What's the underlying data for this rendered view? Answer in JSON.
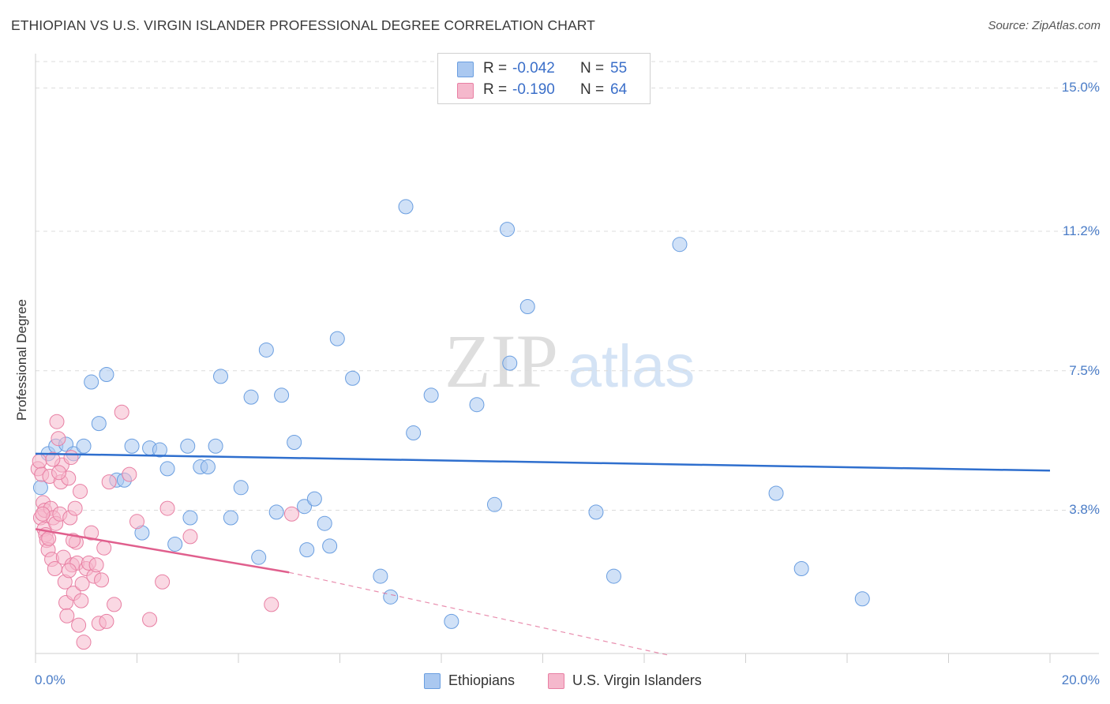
{
  "header": {
    "title": "ETHIOPIAN VS U.S. VIRGIN ISLANDER PROFESSIONAL DEGREE CORRELATION CHART",
    "source": "Source: ZipAtlas.com"
  },
  "watermark": {
    "zip": "ZIP",
    "atlas": "atlas"
  },
  "stats": [
    {
      "r_label": "R =",
      "r_value": "-0.042",
      "n_label": "N =",
      "n_value": "55",
      "color": "#aac8f0"
    },
    {
      "r_label": "R =",
      "r_value": "-0.190",
      "n_label": "N =",
      "n_value": "64",
      "color": "#f5b8cc"
    }
  ],
  "legend": [
    {
      "label": "Ethiopians",
      "color": "#aac8f0"
    },
    {
      "label": "U.S. Virgin Islanders",
      "color": "#f5b8cc"
    }
  ],
  "chart_data": {
    "type": "scatter",
    "title": "ETHIOPIAN VS U.S. VIRGIN ISLANDER PROFESSIONAL DEGREE CORRELATION CHART",
    "xlabel": "",
    "ylabel": "Professional Degree",
    "xlim": [
      0,
      20
    ],
    "ylim": [
      0,
      15.7
    ],
    "x_tick_labels": [
      "0.0%",
      "20.0%"
    ],
    "y_ticks": [
      3.8,
      7.5,
      11.2,
      15.0
    ],
    "y_tick_labels": [
      "3.8%",
      "7.5%",
      "11.2%",
      "15.0%"
    ],
    "grid": true,
    "series": [
      {
        "name": "Ethiopians",
        "color": "#6a9ee0",
        "fill": "#aac8f0",
        "trend": {
          "x": [
            0.0,
            20.0
          ],
          "y": [
            5.3,
            4.85
          ],
          "color": "#2f6fce"
        },
        "points": [
          [
            0.1,
            4.4
          ],
          [
            0.25,
            5.3
          ],
          [
            0.4,
            5.5
          ],
          [
            0.6,
            5.55
          ],
          [
            0.75,
            5.3
          ],
          [
            0.95,
            5.5
          ],
          [
            1.1,
            7.2
          ],
          [
            1.25,
            6.1
          ],
          [
            1.4,
            7.4
          ],
          [
            1.6,
            4.6
          ],
          [
            1.75,
            4.6
          ],
          [
            1.9,
            5.5
          ],
          [
            2.1,
            3.2
          ],
          [
            2.25,
            5.45
          ],
          [
            2.45,
            5.4
          ],
          [
            2.6,
            4.9
          ],
          [
            2.75,
            2.9
          ],
          [
            3.0,
            5.5
          ],
          [
            3.05,
            3.6
          ],
          [
            3.25,
            4.95
          ],
          [
            3.4,
            4.95
          ],
          [
            3.55,
            5.5
          ],
          [
            3.65,
            7.35
          ],
          [
            3.85,
            3.6
          ],
          [
            4.05,
            4.4
          ],
          [
            4.25,
            6.8
          ],
          [
            4.4,
            2.55
          ],
          [
            4.55,
            8.05
          ],
          [
            4.75,
            3.75
          ],
          [
            4.85,
            6.85
          ],
          [
            5.1,
            5.6
          ],
          [
            5.3,
            3.9
          ],
          [
            5.35,
            2.75
          ],
          [
            5.5,
            4.1
          ],
          [
            5.7,
            3.45
          ],
          [
            5.8,
            2.85
          ],
          [
            5.95,
            8.35
          ],
          [
            6.25,
            7.3
          ],
          [
            6.8,
            2.05
          ],
          [
            7.0,
            1.5
          ],
          [
            7.3,
            11.85
          ],
          [
            7.45,
            5.85
          ],
          [
            7.8,
            6.85
          ],
          [
            8.2,
            0.85
          ],
          [
            8.7,
            6.6
          ],
          [
            9.05,
            3.95
          ],
          [
            9.3,
            11.25
          ],
          [
            9.35,
            7.7
          ],
          [
            9.7,
            9.2
          ],
          [
            11.05,
            3.75
          ],
          [
            11.4,
            2.05
          ],
          [
            12.7,
            10.85
          ],
          [
            14.6,
            4.25
          ],
          [
            15.1,
            2.25
          ],
          [
            16.3,
            1.45
          ]
        ]
      },
      {
        "name": "U.S. Virgin Islanders",
        "color": "#e87fa3",
        "fill": "#f5b8cc",
        "trend": {
          "x": [
            0.0,
            5.0
          ],
          "y": [
            3.3,
            2.15
          ],
          "color": "#e05f8d"
        },
        "trend_ext": {
          "x": [
            5.0,
            12.5
          ],
          "y": [
            2.15,
            -0.05
          ]
        },
        "points": [
          [
            0.05,
            4.9
          ],
          [
            0.08,
            5.1
          ],
          [
            0.1,
            3.6
          ],
          [
            0.12,
            4.75
          ],
          [
            0.15,
            4.0
          ],
          [
            0.17,
            3.3
          ],
          [
            0.18,
            3.8
          ],
          [
            0.2,
            3.15
          ],
          [
            0.22,
            3.0
          ],
          [
            0.25,
            2.75
          ],
          [
            0.28,
            4.7
          ],
          [
            0.3,
            3.85
          ],
          [
            0.32,
            2.5
          ],
          [
            0.35,
            3.6
          ],
          [
            0.38,
            2.25
          ],
          [
            0.4,
            3.45
          ],
          [
            0.42,
            6.15
          ],
          [
            0.45,
            5.7
          ],
          [
            0.48,
            3.7
          ],
          [
            0.5,
            4.55
          ],
          [
            0.52,
            5.0
          ],
          [
            0.55,
            2.55
          ],
          [
            0.58,
            1.9
          ],
          [
            0.6,
            1.35
          ],
          [
            0.62,
            1.0
          ],
          [
            0.65,
            4.65
          ],
          [
            0.68,
            3.6
          ],
          [
            0.7,
            5.2
          ],
          [
            0.72,
            2.35
          ],
          [
            0.75,
            1.6
          ],
          [
            0.78,
            3.85
          ],
          [
            0.8,
            2.95
          ],
          [
            0.82,
            2.4
          ],
          [
            0.85,
            0.75
          ],
          [
            0.88,
            4.3
          ],
          [
            0.9,
            1.4
          ],
          [
            0.92,
            1.85
          ],
          [
            0.95,
            0.3
          ],
          [
            1.0,
            2.25
          ],
          [
            1.05,
            2.4
          ],
          [
            1.1,
            3.2
          ],
          [
            1.15,
            2.05
          ],
          [
            1.2,
            2.35
          ],
          [
            1.25,
            0.8
          ],
          [
            1.3,
            1.95
          ],
          [
            1.35,
            2.8
          ],
          [
            1.4,
            0.85
          ],
          [
            1.45,
            4.55
          ],
          [
            1.55,
            1.3
          ],
          [
            1.7,
            6.4
          ],
          [
            1.85,
            4.75
          ],
          [
            2.0,
            3.5
          ],
          [
            2.25,
            0.9
          ],
          [
            2.5,
            1.9
          ],
          [
            2.6,
            3.85
          ],
          [
            3.05,
            3.1
          ],
          [
            4.65,
            1.3
          ],
          [
            5.05,
            3.7
          ],
          [
            0.26,
            3.05
          ],
          [
            0.14,
            3.7
          ],
          [
            0.34,
            5.15
          ],
          [
            0.46,
            4.8
          ],
          [
            0.66,
            2.2
          ],
          [
            0.74,
            3.0
          ]
        ]
      }
    ]
  }
}
